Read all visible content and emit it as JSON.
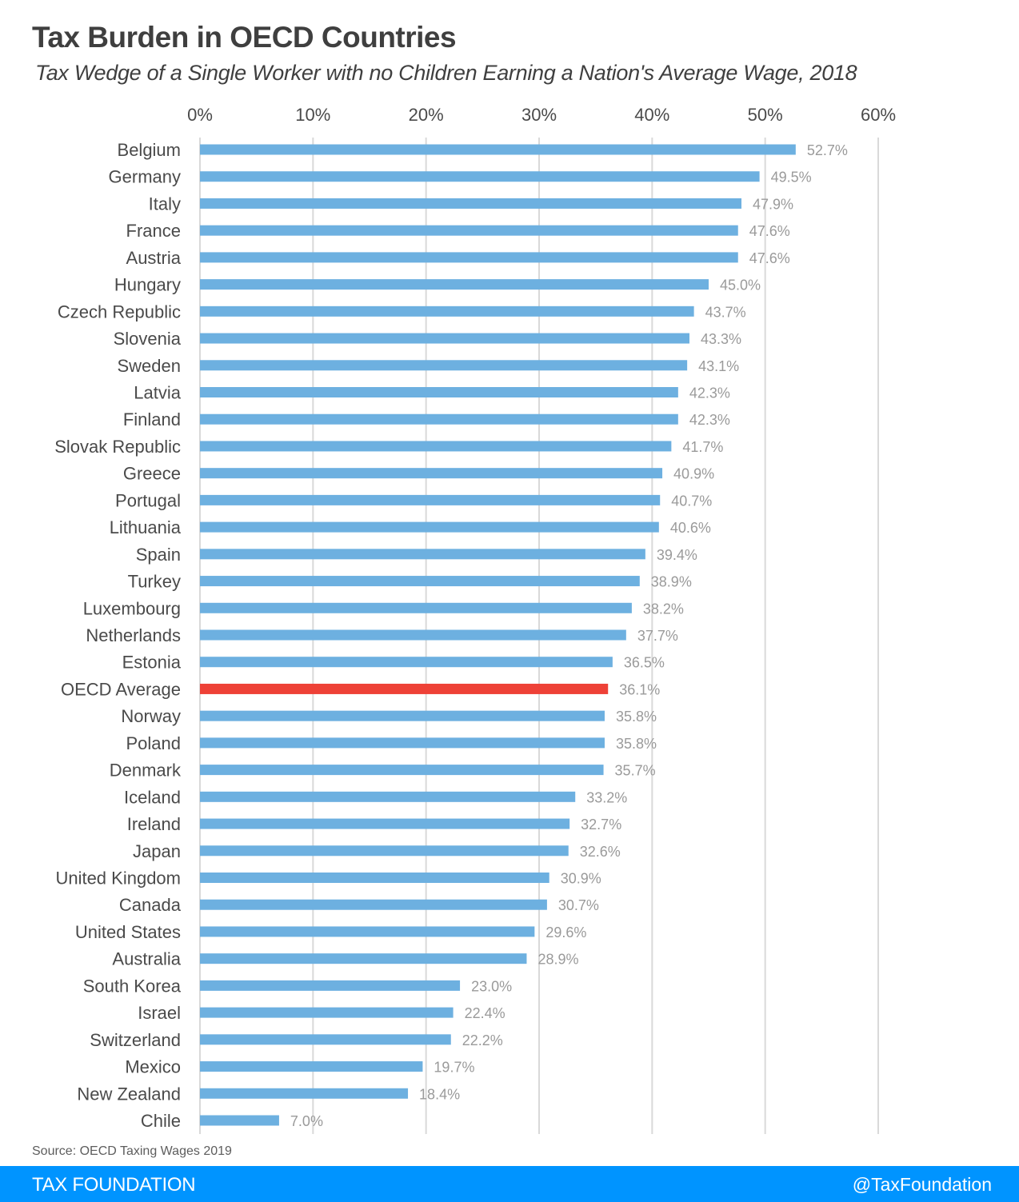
{
  "header": {
    "title": "Tax Burden in OECD Countries",
    "subtitle": "Tax Wedge of a Single Worker with no Children Earning a Nation's Average Wage, 2018"
  },
  "footer": {
    "source": "Source: OECD Taxing Wages 2019",
    "brand": "TAX FOUNDATION",
    "handle": "@TaxFoundation"
  },
  "colors": {
    "bar": "#6db0e0",
    "highlight": "#ee4137",
    "grid": "#d9d9d9",
    "footer_bg": "#0094ff"
  },
  "chart_data": {
    "type": "bar",
    "orientation": "horizontal",
    "title": "Tax Burden in OECD Countries",
    "subtitle": "Tax Wedge of a Single Worker with no Children Earning a Nation's Average Wage, 2018",
    "xlabel": "",
    "ylabel": "",
    "xlim": [
      0,
      60
    ],
    "xticks": [
      0,
      10,
      20,
      30,
      40,
      50,
      60
    ],
    "xtick_labels": [
      "0%",
      "10%",
      "20%",
      "30%",
      "40%",
      "50%",
      "60%"
    ],
    "x_axis_position": "top",
    "grid": "vertical",
    "highlight_category": "OECD Average",
    "categories": [
      "Belgium",
      "Germany",
      "Italy",
      "France",
      "Austria",
      "Hungary",
      "Czech Republic",
      "Slovenia",
      "Sweden",
      "Latvia",
      "Finland",
      "Slovak Republic",
      "Greece",
      "Portugal",
      "Lithuania",
      "Spain",
      "Turkey",
      "Luxembourg",
      "Netherlands",
      "Estonia",
      "OECD Average",
      "Norway",
      "Poland",
      "Denmark",
      "Iceland",
      "Ireland",
      "Japan",
      "United Kingdom",
      "Canada",
      "United States",
      "Australia",
      "South Korea",
      "Israel",
      "Switzerland",
      "Mexico",
      "New Zealand",
      "Chile"
    ],
    "values": [
      52.7,
      49.5,
      47.9,
      47.6,
      47.6,
      45.0,
      43.7,
      43.3,
      43.1,
      42.3,
      42.3,
      41.7,
      40.9,
      40.7,
      40.6,
      39.4,
      38.9,
      38.2,
      37.7,
      36.5,
      36.1,
      35.8,
      35.8,
      35.7,
      33.2,
      32.7,
      32.6,
      30.9,
      30.7,
      29.6,
      28.9,
      23.0,
      22.4,
      22.2,
      19.7,
      18.4,
      7.0
    ],
    "value_labels": [
      "52.7%",
      "49.5%",
      "47.9%",
      "47.6%",
      "47.6%",
      "45.0%",
      "43.7%",
      "43.3%",
      "43.1%",
      "42.3%",
      "42.3%",
      "41.7%",
      "40.9%",
      "40.7%",
      "40.6%",
      "39.4%",
      "38.9%",
      "38.2%",
      "37.7%",
      "36.5%",
      "36.1%",
      "35.8%",
      "35.8%",
      "35.7%",
      "33.2%",
      "32.7%",
      "32.6%",
      "30.9%",
      "30.7%",
      "29.6%",
      "28.9%",
      "23.0%",
      "22.4%",
      "22.2%",
      "19.7%",
      "18.4%",
      "7.0%"
    ]
  }
}
